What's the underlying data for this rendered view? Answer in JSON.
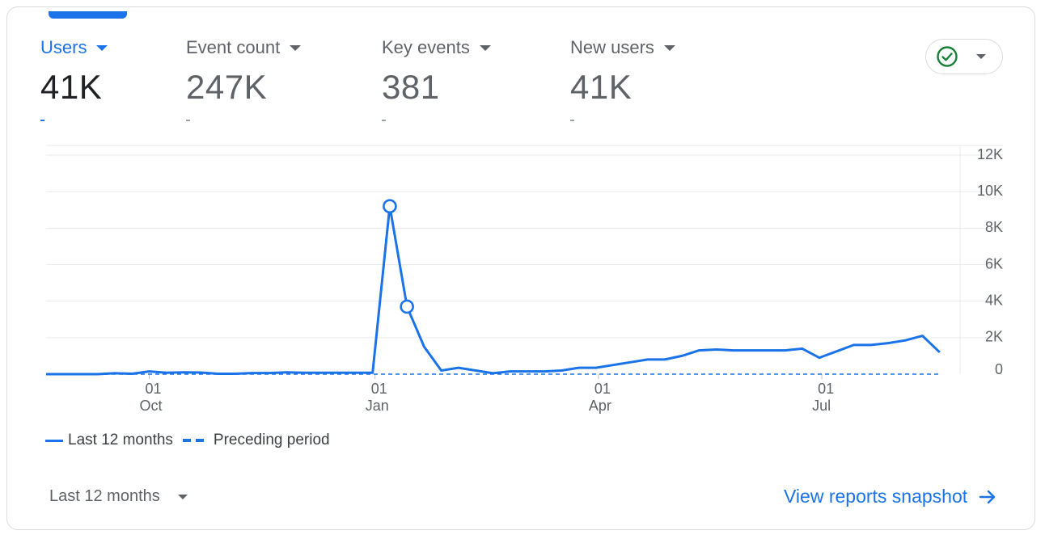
{
  "metrics": [
    {
      "label": "Users",
      "value": "41K",
      "active": true
    },
    {
      "label": "Event count",
      "value": "247K",
      "active": false
    },
    {
      "label": "Key events",
      "value": "381",
      "active": false
    },
    {
      "label": "New users",
      "value": "41K",
      "active": false
    }
  ],
  "status": {
    "icon": "check-circle-icon",
    "color": "#188038"
  },
  "legend": {
    "current": "Last 12 months",
    "previous": "Preceding period"
  },
  "footer": {
    "range_label": "Last 12 months",
    "link_label": "View reports snapshot"
  },
  "colors": {
    "accent": "#1a73e8",
    "text": "#202124",
    "muted": "#5f6368"
  },
  "chart_data": {
    "type": "line",
    "y_axis_position": "right",
    "ylim": [
      0,
      12000
    ],
    "y_ticks": [
      0,
      2000,
      4000,
      6000,
      8000,
      10000,
      12000
    ],
    "y_tick_labels": [
      "0",
      "2K",
      "4K",
      "6K",
      "8K",
      "10K",
      "12K"
    ],
    "x_ticks": [
      {
        "x": "2023-10-01",
        "line1": "01",
        "line2": "Oct"
      },
      {
        "x": "2024-01-01",
        "line1": "01",
        "line2": "Jan"
      },
      {
        "x": "2024-04-01",
        "line1": "01",
        "line2": "Apr"
      },
      {
        "x": "2024-07-01",
        "line1": "01",
        "line2": "Jul"
      }
    ],
    "xlim": [
      "2023-08-20",
      "2024-08-25"
    ],
    "grid": true,
    "series": [
      {
        "name": "Last 12 months",
        "style": "solid",
        "points": [
          {
            "x": "2023-08-20",
            "y": 0
          },
          {
            "x": "2023-08-27",
            "y": 0
          },
          {
            "x": "2023-09-03",
            "y": 0
          },
          {
            "x": "2023-09-10",
            "y": 0
          },
          {
            "x": "2023-09-17",
            "y": 50
          },
          {
            "x": "2023-09-24",
            "y": 20
          },
          {
            "x": "2023-10-01",
            "y": 150
          },
          {
            "x": "2023-10-08",
            "y": 80
          },
          {
            "x": "2023-10-15",
            "y": 100
          },
          {
            "x": "2023-10-22",
            "y": 90
          },
          {
            "x": "2023-10-29",
            "y": 20
          },
          {
            "x": "2023-11-05",
            "y": 20
          },
          {
            "x": "2023-11-12",
            "y": 60
          },
          {
            "x": "2023-11-19",
            "y": 60
          },
          {
            "x": "2023-11-26",
            "y": 100
          },
          {
            "x": "2023-12-03",
            "y": 80
          },
          {
            "x": "2023-12-10",
            "y": 80
          },
          {
            "x": "2023-12-17",
            "y": 80
          },
          {
            "x": "2023-12-24",
            "y": 80
          },
          {
            "x": "2023-12-31",
            "y": 80
          },
          {
            "x": "2024-01-07",
            "y": 9200,
            "marker": true
          },
          {
            "x": "2024-01-14",
            "y": 3700,
            "marker": true
          },
          {
            "x": "2024-01-21",
            "y": 1500
          },
          {
            "x": "2024-01-28",
            "y": 200
          },
          {
            "x": "2024-02-04",
            "y": 350
          },
          {
            "x": "2024-02-11",
            "y": 200
          },
          {
            "x": "2024-02-18",
            "y": 50
          },
          {
            "x": "2024-02-25",
            "y": 150
          },
          {
            "x": "2024-03-03",
            "y": 150
          },
          {
            "x": "2024-03-10",
            "y": 150
          },
          {
            "x": "2024-03-17",
            "y": 200
          },
          {
            "x": "2024-03-24",
            "y": 350
          },
          {
            "x": "2024-03-31",
            "y": 350
          },
          {
            "x": "2024-04-07",
            "y": 500
          },
          {
            "x": "2024-04-14",
            "y": 650
          },
          {
            "x": "2024-04-21",
            "y": 800
          },
          {
            "x": "2024-04-28",
            "y": 800
          },
          {
            "x": "2024-05-05",
            "y": 1000
          },
          {
            "x": "2024-05-12",
            "y": 1300
          },
          {
            "x": "2024-05-19",
            "y": 1350
          },
          {
            "x": "2024-05-26",
            "y": 1300
          },
          {
            "x": "2024-06-02",
            "y": 1300
          },
          {
            "x": "2024-06-09",
            "y": 1300
          },
          {
            "x": "2024-06-16",
            "y": 1300
          },
          {
            "x": "2024-06-23",
            "y": 1400
          },
          {
            "x": "2024-06-30",
            "y": 900
          },
          {
            "x": "2024-07-07",
            "y": 1250
          },
          {
            "x": "2024-07-14",
            "y": 1600
          },
          {
            "x": "2024-07-21",
            "y": 1600
          },
          {
            "x": "2024-07-28",
            "y": 1700
          },
          {
            "x": "2024-08-04",
            "y": 1850
          },
          {
            "x": "2024-08-11",
            "y": 2100
          },
          {
            "x": "2024-08-18",
            "y": 1200
          }
        ]
      },
      {
        "name": "Preceding period",
        "style": "dashed",
        "points": [
          {
            "x": "2023-08-20",
            "y": 0
          },
          {
            "x": "2024-08-18",
            "y": 0
          }
        ]
      }
    ]
  }
}
